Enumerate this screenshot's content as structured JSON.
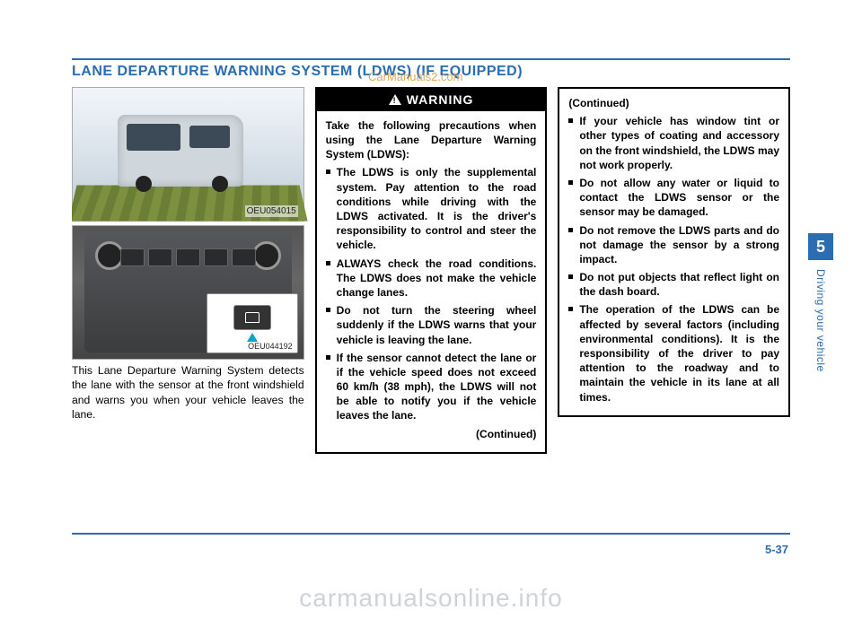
{
  "page": {
    "title": "LANE DEPARTURE WARNING SYSTEM (LDWS) (IF EQUIPPED)",
    "page_number": "5-37",
    "chapter_number": "5",
    "chapter_label": "Driving your vehicle"
  },
  "watermarks": {
    "center": "CarManuals2.com",
    "bottom": "carmanualsonline.info"
  },
  "figures": {
    "fig1_code": "OEU054015",
    "fig2_code": "OEU044192"
  },
  "intro": "This Lane Departure Warning System detects the lane with the sensor at the front windshield and warns you when your vehicle leaves the lane.",
  "warning": {
    "heading": "WARNING",
    "lead": "Take the following precautions when using the Lane Departure Warning System (LDWS):",
    "items": [
      "The LDWS is only the supple­mental system. Pay attention to the road conditions while driving with the LDWS activat­ed. It is the driver's responsi­bility to control and steer the vehicle.",
      "ALWAYS check the road con­ditions. The LDWS does not make the vehicle change lanes.",
      "Do not turn the steering wheel suddenly if the LDWS warns that your vehicle is leaving the lane.",
      "If the sensor cannot detect the lane or if the vehicle speed does not exceed 60 km/h (38 mph), the LDWS will not be able to notify you if the vehi­cle leaves the lane."
    ],
    "continued": "(Continued)"
  },
  "continued_box": {
    "heading": "(Continued)",
    "items": [
      "If your vehicle has window tint or other types of coating and accessory on the front wind­shield, the LDWS may not work properly.",
      "Do not allow any water or liq­uid to contact the LDWS sen­sor or the sensor may be dam­aged.",
      "Do not remove the LDWS parts and do not damage the sensor by a strong impact.",
      "Do not put objects that reflect light on the dash board.",
      "The operation of the LDWS can be affected by several fac­tors (including environmental conditions). It is the responsi­bility of the driver to pay attention to the roadway and to maintain the vehicle in its lane at all times."
    ]
  }
}
